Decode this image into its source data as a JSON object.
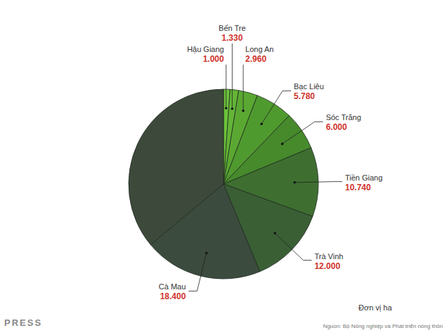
{
  "chart_data": {
    "type": "pie",
    "categories": [
      "Hậu Giang",
      "Bến Tre",
      "Long An",
      "Bạc Liêu",
      "Sóc Trăng",
      "Tiền Giang",
      "Trà Vinh",
      "Cà Mau",
      null
    ],
    "values": [
      1000,
      1330,
      2960,
      5780,
      6000,
      10740,
      12000,
      18400,
      32800
    ],
    "value_labels": [
      "1.000",
      "1.330",
      "2.960",
      "5.780",
      "6.000",
      "10.740",
      "12.000",
      "18.400",
      null
    ],
    "colors": [
      "#6cc23c",
      "#63b536",
      "#5aa832",
      "#4f9a2e",
      "#468a2c",
      "#3e6f30",
      "#3a5f35",
      "#3b4b3d",
      "#3d4a3b"
    ],
    "data_labels": true,
    "annotations": [
      "Đơn vị ha",
      "Nguồn: Bộ Nông nghiệp và Phát triển nông thôn",
      "PRESS"
    ]
  }
}
